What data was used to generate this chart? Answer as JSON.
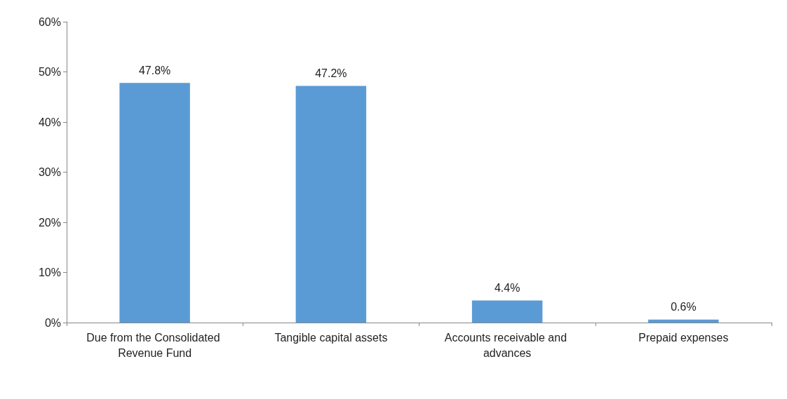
{
  "chart_data": {
    "type": "bar",
    "categories": [
      "Due from the Consolidated Revenue Fund",
      "Tangible capital assets",
      "Accounts receivable and advances",
      "Prepaid expenses"
    ],
    "values": [
      47.8,
      47.2,
      4.4,
      0.6
    ],
    "value_labels": [
      "47.8%",
      "47.2%",
      "4.4%",
      "0.6%"
    ],
    "color": "#5b9bd5",
    "ylim": [
      0,
      60
    ],
    "yticks": [
      {
        "value": 0,
        "label": "0%"
      },
      {
        "value": 10,
        "label": "10%"
      },
      {
        "value": 20,
        "label": "20%"
      },
      {
        "value": 30,
        "label": "30%"
      },
      {
        "value": 40,
        "label": "40%"
      },
      {
        "value": 50,
        "label": "50%"
      },
      {
        "value": 60,
        "label": "60%"
      }
    ],
    "grid": false
  }
}
